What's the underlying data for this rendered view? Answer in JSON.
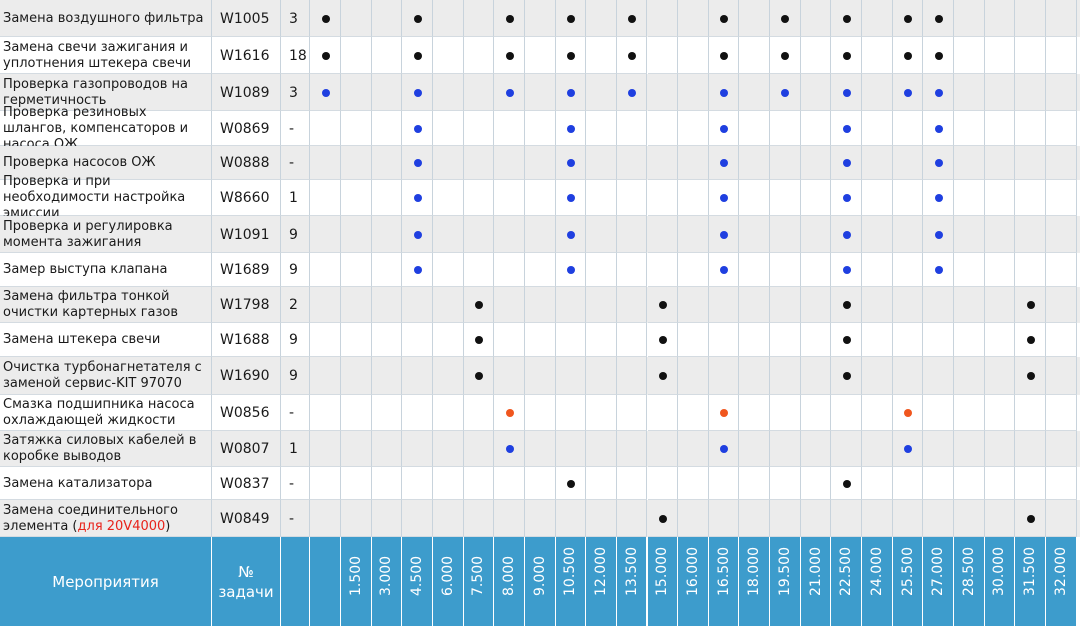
{
  "header": {
    "activities_label": "Мероприятия",
    "task_no_label": "№\nзадачи",
    "intervals": [
      "1.500",
      "3.000",
      "4.500",
      "6.000",
      "7.500",
      "8.000",
      "9.000",
      "10.500",
      "12.000",
      "13.500",
      "15.000",
      "16.000",
      "16.500",
      "18.000",
      "19.500",
      "21.000",
      "22.500",
      "24.000",
      "25.500",
      "27.000",
      "28.500",
      "30.000",
      "31.500",
      "32.000"
    ]
  },
  "colors": {
    "black": "#111111",
    "blue": "#1f3fe0",
    "orange": "#f0561e"
  },
  "rows": [
    {
      "name": "Замена воздушного фильтра",
      "code": "W1005",
      "qty": "3",
      "marks": [
        [
          3,
          "black"
        ],
        [
          6,
          "black"
        ],
        [
          9,
          "black"
        ],
        [
          11,
          "black"
        ],
        [
          13,
          "black"
        ],
        [
          16,
          "black"
        ],
        [
          18,
          "black"
        ],
        [
          20,
          "black"
        ],
        [
          22,
          "black"
        ],
        [
          23,
          "black"
        ]
      ]
    },
    {
      "name": "Замена свечи зажигания и уплотнения штекера свечи",
      "code": "W1616",
      "qty": "18",
      "marks": [
        [
          3,
          "black"
        ],
        [
          6,
          "black"
        ],
        [
          9,
          "black"
        ],
        [
          11,
          "black"
        ],
        [
          13,
          "black"
        ],
        [
          16,
          "black"
        ],
        [
          18,
          "black"
        ],
        [
          20,
          "black"
        ],
        [
          22,
          "black"
        ],
        [
          23,
          "black"
        ]
      ]
    },
    {
      "name": "Проверка газопроводов на герметичность",
      "code": "W1089",
      "qty": "3",
      "marks": [
        [
          3,
          "blue"
        ],
        [
          6,
          "blue"
        ],
        [
          9,
          "blue"
        ],
        [
          11,
          "blue"
        ],
        [
          13,
          "blue"
        ],
        [
          16,
          "blue"
        ],
        [
          18,
          "blue"
        ],
        [
          20,
          "blue"
        ],
        [
          22,
          "blue"
        ],
        [
          23,
          "blue"
        ]
      ]
    },
    {
      "name": "Проверка резиновых шлангов, компенсаторов и насоса ОЖ",
      "code": "W0869",
      "qty": "-",
      "marks": [
        [
          6,
          "blue"
        ],
        [
          11,
          "blue"
        ],
        [
          16,
          "blue"
        ],
        [
          20,
          "blue"
        ],
        [
          23,
          "blue"
        ]
      ]
    },
    {
      "name": "Проверка насосов ОЖ",
      "code": "W0888",
      "qty": "-",
      "marks": [
        [
          6,
          "blue"
        ],
        [
          11,
          "blue"
        ],
        [
          16,
          "blue"
        ],
        [
          20,
          "blue"
        ],
        [
          23,
          "blue"
        ]
      ]
    },
    {
      "name": "Проверка и при необходимости настройка эмиссии",
      "code": "W8660",
      "qty": "1",
      "marks": [
        [
          6,
          "blue"
        ],
        [
          11,
          "blue"
        ],
        [
          16,
          "blue"
        ],
        [
          20,
          "blue"
        ],
        [
          23,
          "blue"
        ]
      ]
    },
    {
      "name": "Проверка и регулировка момента зажигания",
      "code": "W1091",
      "qty": "9",
      "marks": [
        [
          6,
          "blue"
        ],
        [
          11,
          "blue"
        ],
        [
          16,
          "blue"
        ],
        [
          20,
          "blue"
        ],
        [
          23,
          "blue"
        ]
      ]
    },
    {
      "name": "Замер выступа клапана",
      "code": "W1689",
      "qty": "9",
      "marks": [
        [
          6,
          "blue"
        ],
        [
          11,
          "blue"
        ],
        [
          16,
          "blue"
        ],
        [
          20,
          "blue"
        ],
        [
          23,
          "blue"
        ]
      ]
    },
    {
      "name": "Замена фильтра тонкой очистки картерных газов",
      "code": "W1798",
      "qty": "2",
      "marks": [
        [
          8,
          "black"
        ],
        [
          14,
          "black"
        ],
        [
          20,
          "black"
        ],
        [
          26,
          "black"
        ]
      ]
    },
    {
      "name": "Замена штекера свечи",
      "code": "W1688",
      "qty": "9",
      "marks": [
        [
          8,
          "black"
        ],
        [
          14,
          "black"
        ],
        [
          20,
          "black"
        ],
        [
          26,
          "black"
        ]
      ]
    },
    {
      "name": "Очистка турбонагнетателя с заменой сервис-KIT 97070",
      "code": "W1690",
      "qty": "9",
      "marks": [
        [
          8,
          "black"
        ],
        [
          14,
          "black"
        ],
        [
          20,
          "black"
        ],
        [
          26,
          "black"
        ]
      ]
    },
    {
      "name": "Смазка подшипника насоса охлаждающей жидкости",
      "code": "W0856",
      "qty": "-",
      "marks": [
        [
          9,
          "orange"
        ],
        [
          16,
          "orange"
        ],
        [
          22,
          "orange"
        ]
      ]
    },
    {
      "name": "Затяжка силовых кабелей в коробке выводов",
      "code": "W0807",
      "qty": "1",
      "marks": [
        [
          9,
          "blue"
        ],
        [
          16,
          "blue"
        ],
        [
          22,
          "blue"
        ]
      ]
    },
    {
      "name": "Замена катализатора",
      "code": "W0837",
      "qty": "-",
      "marks": [
        [
          11,
          "black"
        ],
        [
          20,
          "black"
        ]
      ]
    },
    {
      "name": "Замена соединительного элемента",
      "name_suffix": "для 20V4000",
      "code": "W0849",
      "qty": "-",
      "marks": [
        [
          14,
          "black"
        ],
        [
          26,
          "black"
        ]
      ]
    }
  ]
}
